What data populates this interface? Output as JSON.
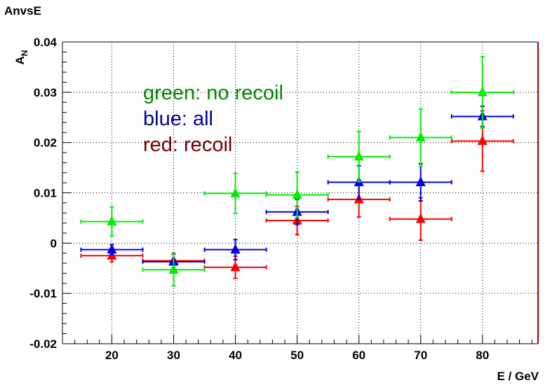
{
  "hist_title": "AnvsE",
  "chart_data": {
    "type": "scatter",
    "title": "",
    "xlabel": "E / GeV",
    "ylabel_main": "A",
    "ylabel_sub": "N",
    "xlim": [
      12,
      89
    ],
    "ylim": [
      -0.02,
      0.04
    ],
    "x_ticks": [
      20,
      30,
      40,
      50,
      60,
      70,
      80
    ],
    "y_ticks": [
      -0.02,
      -0.01,
      0,
      0.01,
      0.02,
      0.03,
      0.04
    ],
    "y_tick_labels": [
      "-0.02",
      "-0.01",
      "0",
      "0.01",
      "0.02",
      "0.03",
      "0.04"
    ],
    "x_tick_labels": [
      "20",
      "30",
      "40",
      "50",
      "60",
      "70",
      "80"
    ],
    "grid": true,
    "x_bin_half_width": 5,
    "annotations": [
      {
        "text": "green: no recoil",
        "color": "#008800"
      },
      {
        "text": "blue: all",
        "color": "#000099"
      },
      {
        "text": "red: recoil",
        "color": "#770000"
      }
    ],
    "series": [
      {
        "color": "#ff0000",
        "x": [
          20,
          30,
          40,
          50,
          60,
          70,
          80
        ],
        "y": [
          -0.0025,
          -0.0035,
          -0.0048,
          0.0045,
          0.0087,
          0.0048,
          0.0203
        ],
        "yerr": [
          0.0012,
          0.0015,
          0.0022,
          0.0028,
          0.0035,
          0.0042,
          0.006
        ]
      },
      {
        "color": "#0000ee",
        "x": [
          20,
          30,
          40,
          50,
          60,
          70,
          80
        ],
        "y": [
          -0.0013,
          -0.0037,
          -0.0013,
          0.0062,
          0.0121,
          0.0121,
          0.0252
        ],
        "yerr": [
          0.001,
          0.0015,
          0.002,
          0.0025,
          0.0033,
          0.0037,
          0.002
        ]
      },
      {
        "color": "#00ee00",
        "x": [
          20,
          30,
          40,
          50,
          60,
          70,
          80
        ],
        "y": [
          0.0043,
          -0.0053,
          0.0099,
          0.0096,
          0.0172,
          0.021,
          0.03
        ],
        "yerr": [
          0.0029,
          0.0032,
          0.004,
          0.0045,
          0.005,
          0.0057,
          0.0071
        ]
      }
    ]
  }
}
